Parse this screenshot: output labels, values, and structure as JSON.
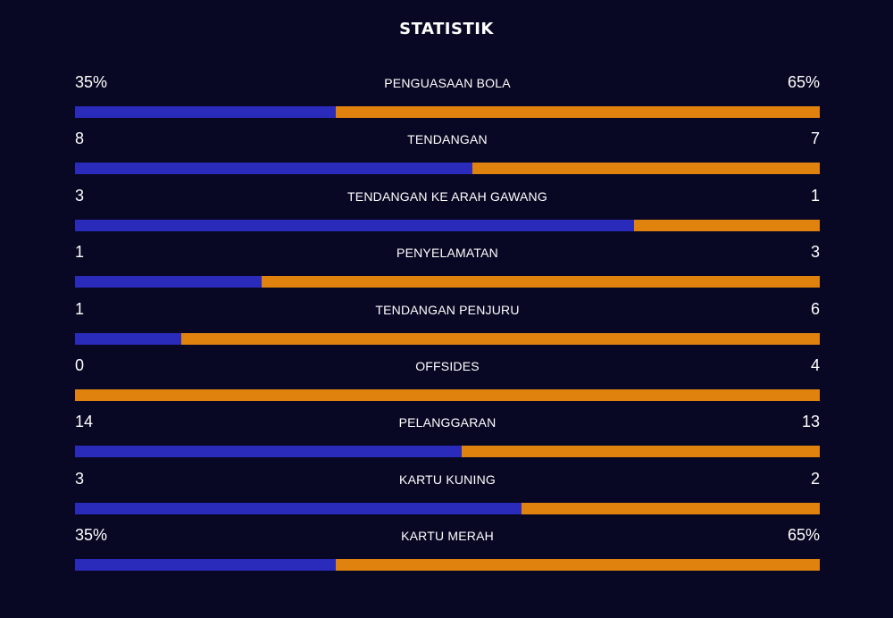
{
  "title": "STATISTIK",
  "colors": {
    "background": "#080824",
    "home": "#2a2abb",
    "away": "#e0820e"
  },
  "stats": [
    {
      "label": "PENGUASAAN BOLA",
      "home": "35%",
      "away": "65%",
      "home_share": 0.35
    },
    {
      "label": "TENDANGAN",
      "home": "8",
      "away": "7",
      "home_share": 0.533
    },
    {
      "label": "TENDANGAN KE ARAH GAWANG",
      "home": "3",
      "away": "1",
      "home_share": 0.75
    },
    {
      "label": "PENYELAMATAN",
      "home": "1",
      "away": "3",
      "home_share": 0.25
    },
    {
      "label": "TENDANGAN PENJURU",
      "home": "1",
      "away": "6",
      "home_share": 0.143
    },
    {
      "label": "OFFSIDES",
      "home": "0",
      "away": "4",
      "home_share": 0
    },
    {
      "label": "PELANGGARAN",
      "home": "14",
      "away": "13",
      "home_share": 0.519
    },
    {
      "label": "KARTU KUNING",
      "home": "3",
      "away": "2",
      "home_share": 0.6
    },
    {
      "label": "KARTU MERAH",
      "home": "35%",
      "away": "65%",
      "home_share": 0.35
    }
  ]
}
